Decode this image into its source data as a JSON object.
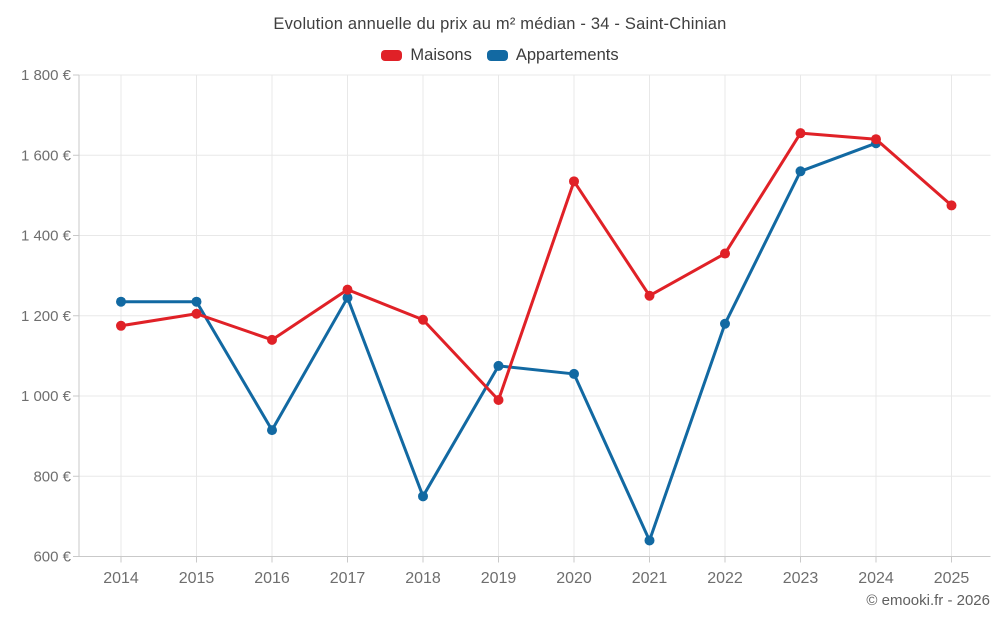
{
  "footer": {
    "watermark": "© emooki.fr - 2026"
  },
  "chart_data": {
    "type": "line",
    "title": "Evolution annuelle du prix au m² médian - 34 - Saint-Chinian",
    "xlabel": "",
    "ylabel": "",
    "x_labels": [
      "2014",
      "2015",
      "2016",
      "2017",
      "2018",
      "2019",
      "2020",
      "2021",
      "2022",
      "2023",
      "2024",
      "2025"
    ],
    "series": [
      {
        "name": "Maisons",
        "color": "#e02127",
        "values": [
          1175,
          1205,
          1140,
          1265,
          1190,
          990,
          1535,
          1250,
          1355,
          1655,
          1640,
          1475
        ]
      },
      {
        "name": "Appartements",
        "color": "#1269a2",
        "values": [
          1235,
          1235,
          915,
          1245,
          750,
          1075,
          1055,
          640,
          1180,
          1560,
          1630,
          null
        ]
      }
    ],
    "ylim": [
      600,
      1800
    ],
    "yticks": [
      600,
      800,
      1000,
      1200,
      1400,
      1600,
      1800
    ],
    "ytick_labels": [
      "600 €",
      "800 €",
      "1 000 €",
      "1 200 €",
      "1 400 €",
      "1 600 €",
      "1 800 €"
    ],
    "currency_format": "euro",
    "grid": true,
    "legend_position": "top",
    "colors": {
      "grid": "#e8e8e8",
      "axis": "#c9c9c9",
      "tick_text": "#6e6e6e",
      "title_text": "#3f3f3f",
      "legend_text": "#3c3c3c",
      "watermark_text": "#606060",
      "background": "#ffffff"
    }
  }
}
